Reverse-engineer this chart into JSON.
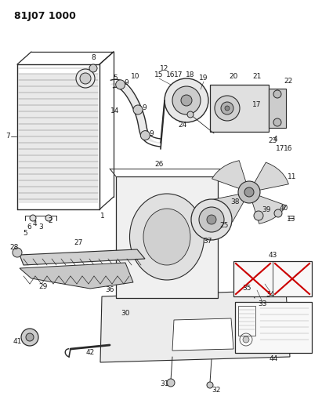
{
  "title": "81J07 1000",
  "bg_color": "#ffffff",
  "line_color": "#2a2a2a",
  "label_fontsize": 6.5,
  "parts_label_color": "#1a1a1a"
}
